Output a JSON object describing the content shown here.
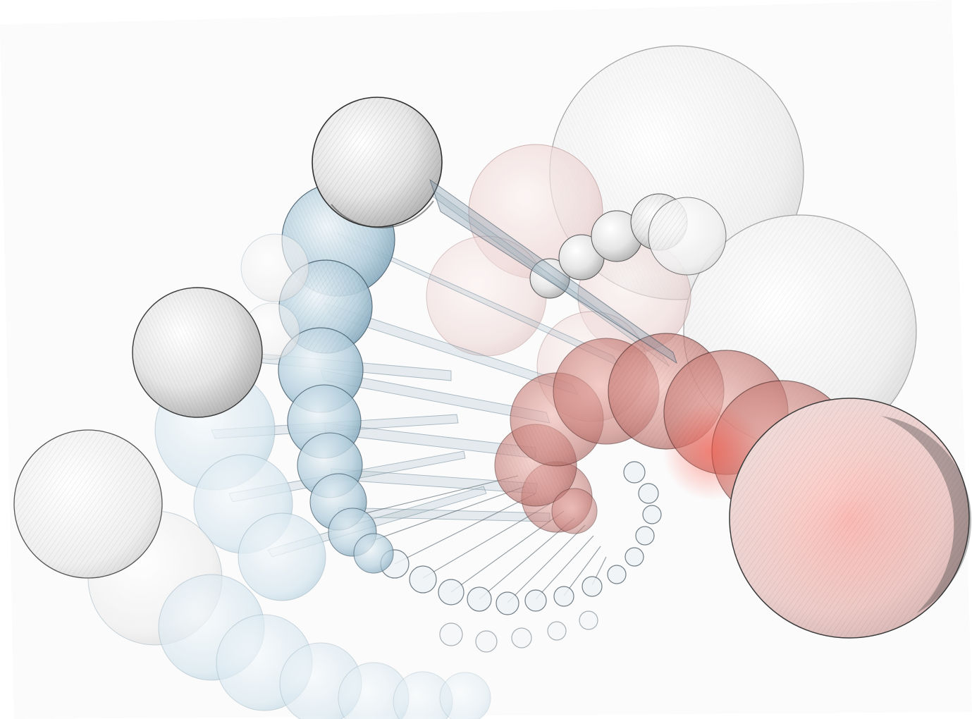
{
  "artwork": {
    "subject": "pencil-sketch-helix-of-spheres",
    "colors": {
      "background": "#ffffff",
      "paper": "#f7f7f7",
      "pencil": "#3d3d3d",
      "sphere_gray": "#d9d9d9",
      "sphere_blue": "#8fb6cc",
      "sphere_red": "#c86a6a",
      "sphere_pink": "#eecaca"
    }
  }
}
